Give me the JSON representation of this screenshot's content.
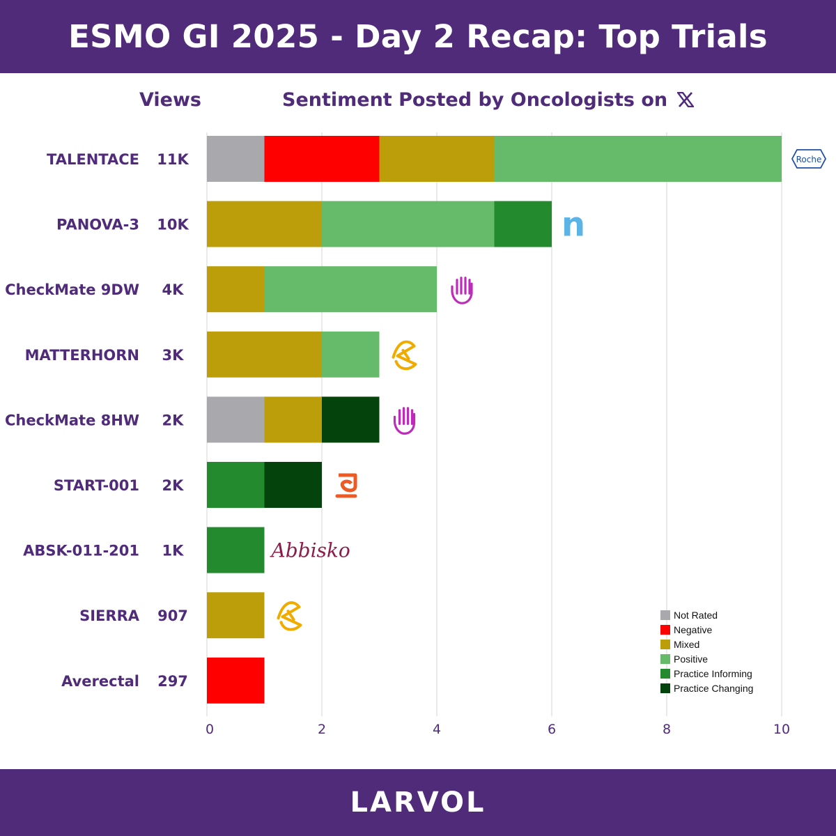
{
  "header": {
    "title": "ESMO GI 2025 - Day 2 Recap: Top Trials"
  },
  "columns": {
    "views_label": "Views",
    "sentiment_label": "Sentiment Posted by Oncologists on",
    "platform_icon": "x-logo-icon"
  },
  "footer": {
    "brand": "LARVOL"
  },
  "colors": {
    "header_bg": "#4f2b7a",
    "label": "#4f2b7a",
    "Not Rated": "#a9a9ad",
    "Negative": "#ff0000",
    "Mixed": "#bb9e0a",
    "Positive": "#66bb6a",
    "Practice Informing": "#238a2e",
    "Practice Changing": "#04430b"
  },
  "chart_data": {
    "type": "bar",
    "orientation": "horizontal",
    "stacked": true,
    "title": "Sentiment Posted by Oncologists on X",
    "xlim": [
      0,
      10
    ],
    "xticks": [
      0,
      2,
      4,
      6,
      8,
      10
    ],
    "grid": true,
    "legend_position": "bottom-right",
    "categories": [
      "TALENTACE",
      "PANOVA-3",
      "CheckMate 9DW",
      "MATTERHORN",
      "CheckMate 8HW",
      "START-001",
      "ABSK-011-201",
      "SIERRA",
      "Averectal"
    ],
    "views": [
      "11K",
      "10K",
      "4K",
      "3K",
      "2K",
      "2K",
      "1K",
      "907",
      "297"
    ],
    "sponsor_logos": [
      "roche-logo",
      "novocure-logo",
      "bms-logo",
      "astrazeneca-logo",
      "bms-logo",
      "stemirna-logo",
      "abbisko-logo",
      "astrazeneca-logo",
      ""
    ],
    "sponsor_text": [
      "Roche",
      "n",
      "",
      "",
      "",
      "",
      "Abbisko",
      "",
      ""
    ],
    "series": [
      {
        "name": "Not Rated",
        "values": [
          1,
          0,
          0,
          0,
          1,
          0,
          0,
          0,
          0
        ]
      },
      {
        "name": "Negative",
        "values": [
          2,
          0,
          0,
          0,
          0,
          0,
          0,
          0,
          1
        ]
      },
      {
        "name": "Mixed",
        "values": [
          2,
          2,
          1,
          2,
          1,
          0,
          0,
          1,
          0
        ]
      },
      {
        "name": "Positive",
        "values": [
          5,
          3,
          3,
          1,
          0,
          0,
          0,
          0,
          0
        ]
      },
      {
        "name": "Practice Informing",
        "values": [
          0,
          1,
          0,
          0,
          0,
          1,
          1,
          0,
          0
        ]
      },
      {
        "name": "Practice Changing",
        "values": [
          0,
          0,
          0,
          0,
          1,
          1,
          0,
          0,
          0
        ]
      }
    ]
  }
}
